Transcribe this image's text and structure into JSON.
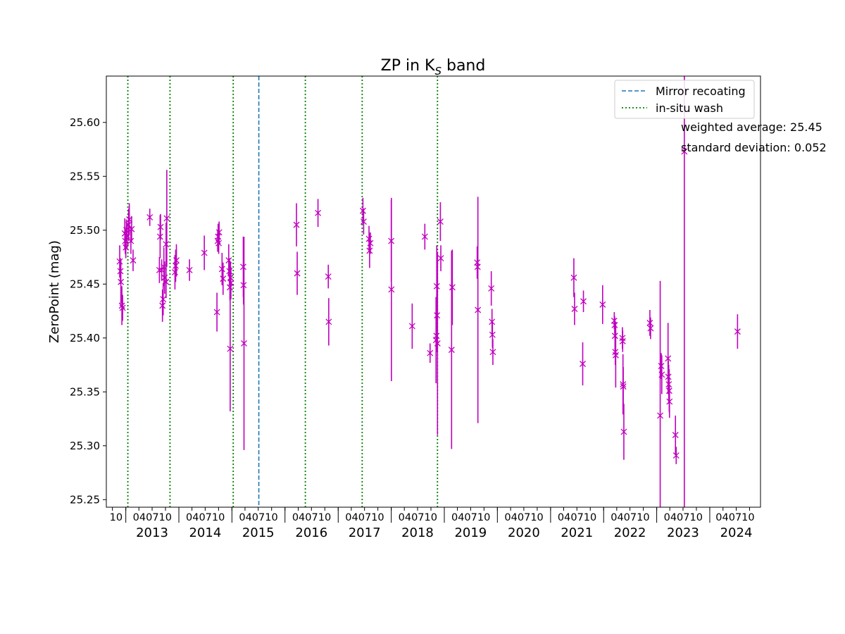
{
  "chart_data": {
    "type": "scatter",
    "title_main": "ZP in K",
    "title_sub": "S",
    "title_tail": " band",
    "ylabel": "ZeroPoint (mag)",
    "xlabel": "",
    "xlim": [
      "2012-08-20",
      "2024-12-15"
    ],
    "ylim": [
      25.243,
      25.643
    ],
    "y_ticks": [
      25.25,
      25.3,
      25.35,
      25.4,
      25.45,
      25.5,
      25.55,
      25.6
    ],
    "y_tick_labels": [
      "25.25",
      "25.30",
      "25.35",
      "25.40",
      "25.45",
      "25.50",
      "25.55",
      "25.60"
    ],
    "first_minor_label": "10",
    "minor_label": "040710",
    "years": [
      "2013",
      "2014",
      "2015",
      "2016",
      "2017",
      "2018",
      "2019",
      "2020",
      "2021",
      "2022",
      "2023",
      "2024"
    ],
    "grid": false,
    "legend_position": "top-right",
    "legend": [
      {
        "label": "Mirror recoating",
        "style": "dashed",
        "color": "#1f77b4"
      },
      {
        "label": "in-situ wash",
        "style": "dotted",
        "color": "#008000"
      }
    ],
    "annotations": [
      "weighted average: 25.45",
      "standard deviation: 0.052"
    ],
    "marker_color": "#bf00bf",
    "mirror_recoating_dates": [
      "2015-07-05"
    ],
    "wash_dates": [
      "2013-01-15",
      "2013-11-01",
      "2015-01-10",
      "2016-05-20",
      "2017-06-15",
      "2018-11-15"
    ],
    "series": [
      {
        "marker": "x",
        "points": [
          [
            "2012-11-20",
            25.471,
            0.015
          ],
          [
            "2012-11-25",
            25.462,
            0.012
          ],
          [
            "2012-11-28",
            25.452,
            0.02
          ],
          [
            "2012-12-05",
            25.43,
            0.018
          ],
          [
            "2012-12-10",
            25.428,
            0.012
          ],
          [
            "2012-12-25",
            25.497,
            0.014
          ],
          [
            "2012-12-28",
            25.49,
            0.012
          ],
          [
            "2013-01-01",
            25.484,
            0.01
          ],
          [
            "2013-01-05",
            25.5,
            0.01
          ],
          [
            "2013-01-10",
            25.495,
            0.012
          ],
          [
            "2013-01-20",
            25.505,
            0.015
          ],
          [
            "2013-01-25",
            25.51,
            0.015
          ],
          [
            "2013-02-05",
            25.49,
            0.012
          ],
          [
            "2013-02-10",
            25.501,
            0.012
          ],
          [
            "2013-02-20",
            25.472,
            0.01
          ],
          [
            "2013-06-15",
            25.512,
            0.008
          ],
          [
            "2013-08-20",
            25.463,
            0.012
          ],
          [
            "2013-08-25",
            25.494,
            0.02
          ],
          [
            "2013-08-28",
            25.503,
            0.012
          ],
          [
            "2013-09-05",
            25.463,
            0.01
          ],
          [
            "2013-09-10",
            25.43,
            0.015
          ],
          [
            "2013-09-15",
            25.436,
            0.015
          ],
          [
            "2013-09-20",
            25.466,
            0.018
          ],
          [
            "2013-09-25",
            25.456,
            0.015
          ],
          [
            "2013-10-05",
            25.452,
            0.015
          ],
          [
            "2013-10-05",
            25.487,
            0.02
          ],
          [
            "2013-10-10",
            25.511,
            0.045
          ],
          [
            "2013-12-05",
            25.461,
            0.016
          ],
          [
            "2013-12-10",
            25.467,
            0.015
          ],
          [
            "2013-12-15",
            25.472,
            0.015
          ],
          [
            "2014-03-15",
            25.463,
            0.01
          ],
          [
            "2014-06-25",
            25.479,
            0.016
          ],
          [
            "2014-09-20",
            25.424,
            0.018
          ],
          [
            "2014-09-25",
            25.49,
            0.01
          ],
          [
            "2014-09-28",
            25.494,
            0.012
          ],
          [
            "2014-10-02",
            25.488,
            0.01
          ],
          [
            "2014-10-05",
            25.498,
            0.01
          ],
          [
            "2014-10-25",
            25.464,
            0.015
          ],
          [
            "2014-11-01",
            25.455,
            0.015
          ],
          [
            "2014-12-10",
            25.472,
            0.015
          ],
          [
            "2014-12-15",
            25.462,
            0.012
          ],
          [
            "2014-12-18",
            25.447,
            0.012
          ],
          [
            "2014-12-20",
            25.39,
            0.058
          ],
          [
            "2014-12-22",
            25.456,
            0.015
          ],
          [
            "2014-12-25",
            25.451,
            0.015
          ],
          [
            "2015-03-20",
            25.466,
            0.028
          ],
          [
            "2015-03-22",
            25.449,
            0.018
          ],
          [
            "2015-03-25",
            25.395,
            0.099
          ],
          [
            "2016-03-20",
            25.505,
            0.02
          ],
          [
            "2016-03-25",
            25.46,
            0.02
          ],
          [
            "2016-08-15",
            25.516,
            0.013
          ],
          [
            "2016-10-25",
            25.457,
            0.011
          ],
          [
            "2016-10-28",
            25.415,
            0.022
          ],
          [
            "2017-06-20",
            25.518,
            0.012
          ],
          [
            "2017-06-25",
            25.508,
            0.012
          ],
          [
            "2017-08-01",
            25.492,
            0.012
          ],
          [
            "2017-08-05",
            25.481,
            0.016
          ],
          [
            "2017-08-10",
            25.488,
            0.01
          ],
          [
            "2018-01-01",
            25.49,
            0.038
          ],
          [
            "2018-01-02",
            25.445,
            0.085
          ],
          [
            "2018-05-25",
            25.411,
            0.021
          ],
          [
            "2018-08-20",
            25.494,
            0.012
          ],
          [
            "2018-09-25",
            25.386,
            0.009
          ],
          [
            "2018-11-05",
            25.398,
            0.04
          ],
          [
            "2018-11-08",
            25.402,
            0.015
          ],
          [
            "2018-11-10",
            25.448,
            0.038
          ],
          [
            "2018-11-12",
            25.421,
            0.018
          ],
          [
            "2018-11-15",
            25.395,
            0.085
          ],
          [
            "2018-12-05",
            25.508,
            0.018
          ],
          [
            "2018-12-08",
            25.474,
            0.012
          ],
          [
            "2019-02-20",
            25.389,
            0.092
          ],
          [
            "2019-02-25",
            25.447,
            0.035
          ],
          [
            "2019-08-15",
            25.47,
            0.015
          ],
          [
            "2019-08-18",
            25.466,
            0.01
          ],
          [
            "2019-08-20",
            25.426,
            0.105
          ],
          [
            "2019-11-20",
            25.446,
            0.016
          ],
          [
            "2019-11-25",
            25.415,
            0.012
          ],
          [
            "2019-11-28",
            25.403,
            0.012
          ],
          [
            "2019-12-01",
            25.387,
            0.012
          ],
          [
            "2021-06-10",
            25.456,
            0.018
          ],
          [
            "2021-06-15",
            25.427,
            0.015
          ],
          [
            "2021-08-10",
            25.376,
            0.02
          ],
          [
            "2021-08-15",
            25.434,
            0.01
          ],
          [
            "2021-12-25",
            25.431,
            0.018
          ],
          [
            "2022-03-15",
            25.416,
            0.008
          ],
          [
            "2022-03-18",
            25.412,
            0.008
          ],
          [
            "2022-03-20",
            25.402,
            0.016
          ],
          [
            "2022-03-22",
            25.387,
            0.012
          ],
          [
            "2022-03-25",
            25.384,
            0.03
          ],
          [
            "2022-05-10",
            25.4,
            0.01
          ],
          [
            "2022-05-12",
            25.397,
            0.01
          ],
          [
            "2022-05-14",
            25.357,
            0.028
          ],
          [
            "2022-05-16",
            25.355,
            0.018
          ],
          [
            "2022-05-20",
            25.313,
            0.026
          ],
          [
            "2022-11-15",
            25.414,
            0.012
          ],
          [
            "2022-11-20",
            25.409,
            0.01
          ],
          [
            "2023-01-25",
            25.328,
            0.125
          ],
          [
            "2023-02-01",
            25.374,
            0.012
          ],
          [
            "2023-02-05",
            25.366,
            0.018
          ],
          [
            "2023-03-20",
            25.381,
            0.033
          ],
          [
            "2023-03-22",
            25.364,
            0.015
          ],
          [
            "2023-03-25",
            25.357,
            0.018
          ],
          [
            "2023-03-28",
            25.351,
            0.02
          ],
          [
            "2023-03-30",
            25.341,
            0.015
          ],
          [
            "2023-05-10",
            25.31,
            0.018
          ],
          [
            "2023-05-15",
            25.291,
            0.008
          ],
          [
            "2023-07-10",
            25.573,
            0.6
          ],
          [
            "2024-07-10",
            25.406,
            0.016
          ]
        ]
      }
    ]
  }
}
